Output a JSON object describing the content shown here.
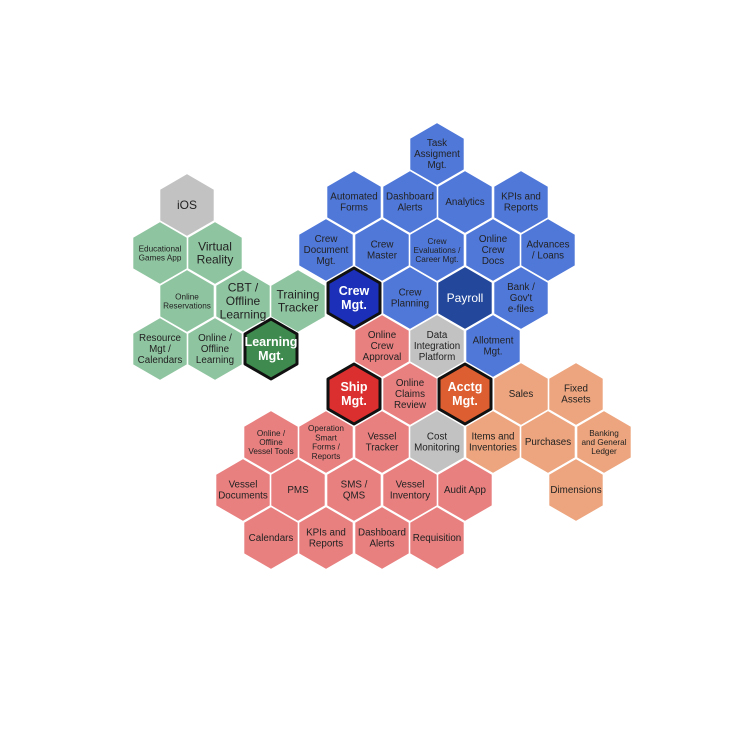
{
  "colors": {
    "blue": "#5078d9",
    "green": "#8fc4a0",
    "red": "#e88080",
    "orange": "#eca57e",
    "gray": "#c2c2c2",
    "crew_center": "#1b2fb8",
    "payroll_center": "#22479b",
    "learning_center": "#3f8a4f",
    "ship_center": "#db2f2f",
    "acctg_center": "#dd5f31",
    "text_dark": "#222222",
    "text_light": "#ffffff",
    "stroke": "#ffffff",
    "center_stroke": "#111111"
  },
  "hexes": [
    {
      "id": "task-assignment",
      "lines": [
        "Task",
        "Assigment",
        "Mgt."
      ],
      "group": "blue"
    },
    {
      "id": "automated-forms",
      "lines": [
        "Automated",
        "Forms"
      ],
      "group": "blue"
    },
    {
      "id": "dashboard-alerts-crew",
      "lines": [
        "Dashboard",
        "Alerts"
      ],
      "group": "blue"
    },
    {
      "id": "analytics",
      "lines": [
        "Analytics"
      ],
      "group": "blue"
    },
    {
      "id": "kpis-reports-crew",
      "lines": [
        "KPIs and",
        "Reports"
      ],
      "group": "blue"
    },
    {
      "id": "crew-document-mgt",
      "lines": [
        "Crew",
        "Document",
        "Mgt."
      ],
      "group": "blue"
    },
    {
      "id": "crew-master",
      "lines": [
        "Crew",
        "Master"
      ],
      "group": "blue"
    },
    {
      "id": "crew-evaluations",
      "lines": [
        "Crew",
        "Evaluations /",
        "Career Mgt."
      ],
      "group": "blue",
      "small": true
    },
    {
      "id": "online-crew-docs",
      "lines": [
        "Online",
        "Crew",
        "Docs"
      ],
      "group": "blue"
    },
    {
      "id": "advances-loans",
      "lines": [
        "Advances",
        "/ Loans"
      ],
      "group": "blue"
    },
    {
      "id": "crew-mgt",
      "lines": [
        "Crew",
        "Mgt."
      ],
      "group": "crew_center",
      "center": true
    },
    {
      "id": "crew-planning",
      "lines": [
        "Crew",
        "Planning"
      ],
      "group": "blue"
    },
    {
      "id": "payroll",
      "lines": [
        "Payroll"
      ],
      "group": "payroll_center",
      "light": true,
      "large": true
    },
    {
      "id": "bank-govt-efiles",
      "lines": [
        "Bank /",
        "Gov't",
        "e-files"
      ],
      "group": "blue"
    },
    {
      "id": "allotment-mgt",
      "lines": [
        "Allotment",
        "Mgt."
      ],
      "group": "blue"
    },
    {
      "id": "ios",
      "lines": [
        "iOS"
      ],
      "group": "gray",
      "large": true
    },
    {
      "id": "educational-games-app",
      "lines": [
        "Educational",
        "Games App"
      ],
      "group": "green",
      "small": true
    },
    {
      "id": "virtual-reality",
      "lines": [
        "Virtual",
        "Reality"
      ],
      "group": "green",
      "large": true
    },
    {
      "id": "online-reservations",
      "lines": [
        "Online",
        "Reservations"
      ],
      "group": "green",
      "small": true
    },
    {
      "id": "cbt-offline-learning",
      "lines": [
        "CBT /",
        "Offline",
        "Learning"
      ],
      "group": "green",
      "large": true
    },
    {
      "id": "training-tracker",
      "lines": [
        "Training",
        "Tracker"
      ],
      "group": "green",
      "large": true
    },
    {
      "id": "resource-mgt-calendars",
      "lines": [
        "Resource",
        "Mgt /",
        "Calendars"
      ],
      "group": "green"
    },
    {
      "id": "online-offline-learning",
      "lines": [
        "Online /",
        "Offline",
        "Learning"
      ],
      "group": "green"
    },
    {
      "id": "learning-mgt",
      "lines": [
        "Learning",
        "Mgt."
      ],
      "group": "learning_center",
      "center": true
    },
    {
      "id": "online-crew-approval",
      "lines": [
        "Online",
        "Crew",
        "Approval"
      ],
      "group": "red"
    },
    {
      "id": "data-integration-platform",
      "lines": [
        "Data",
        "Integration",
        "Platform"
      ],
      "group": "gray"
    },
    {
      "id": "ship-mgt",
      "lines": [
        "Ship",
        "Mgt."
      ],
      "group": "ship_center",
      "center": true
    },
    {
      "id": "online-claims-review",
      "lines": [
        "Online",
        "Claims",
        "Review"
      ],
      "group": "red"
    },
    {
      "id": "acctg-mgt",
      "lines": [
        "Acctg",
        "Mgt."
      ],
      "group": "acctg_center",
      "center": true
    },
    {
      "id": "sales",
      "lines": [
        "Sales"
      ],
      "group": "orange"
    },
    {
      "id": "fixed-assets",
      "lines": [
        "Fixed",
        "Assets"
      ],
      "group": "orange"
    },
    {
      "id": "online-offline-vessel-tools",
      "lines": [
        "Online /",
        "Offline",
        "Vessel Tools"
      ],
      "group": "red",
      "small": true
    },
    {
      "id": "operation-smart-forms",
      "lines": [
        "Operation",
        "Smart",
        "Forms /",
        "Reports"
      ],
      "group": "red",
      "small": true
    },
    {
      "id": "vessel-tracker",
      "lines": [
        "Vessel",
        "Tracker"
      ],
      "group": "red"
    },
    {
      "id": "cost-monitoring",
      "lines": [
        "Cost",
        "Monitoring"
      ],
      "group": "gray"
    },
    {
      "id": "items-and-inventories",
      "lines": [
        "Items and",
        "Inventories"
      ],
      "group": "orange"
    },
    {
      "id": "purchases",
      "lines": [
        "Purchases"
      ],
      "group": "orange"
    },
    {
      "id": "banking-general-ledger",
      "lines": [
        "Banking",
        "and General",
        "Ledger"
      ],
      "group": "orange",
      "small": true
    },
    {
      "id": "vessel-documents",
      "lines": [
        "Vessel",
        "Documents"
      ],
      "group": "red"
    },
    {
      "id": "pms",
      "lines": [
        "PMS"
      ],
      "group": "red"
    },
    {
      "id": "sms-qms",
      "lines": [
        "SMS /",
        "QMS"
      ],
      "group": "red"
    },
    {
      "id": "vessel-inventory",
      "lines": [
        "Vessel",
        "Inventory"
      ],
      "group": "red"
    },
    {
      "id": "audit-app",
      "lines": [
        "Audit App"
      ],
      "group": "red"
    },
    {
      "id": "dimensions",
      "lines": [
        "Dimensions"
      ],
      "group": "orange"
    },
    {
      "id": "calendars",
      "lines": [
        "Calendars"
      ],
      "group": "red"
    },
    {
      "id": "kpis-reports-ship",
      "lines": [
        "KPIs and",
        "Reports"
      ],
      "group": "red"
    },
    {
      "id": "dashboard-alerts-ship",
      "lines": [
        "Dashboard",
        "Alerts"
      ],
      "group": "red"
    },
    {
      "id": "requisition",
      "lines": [
        "Requisition"
      ],
      "group": "red"
    }
  ]
}
